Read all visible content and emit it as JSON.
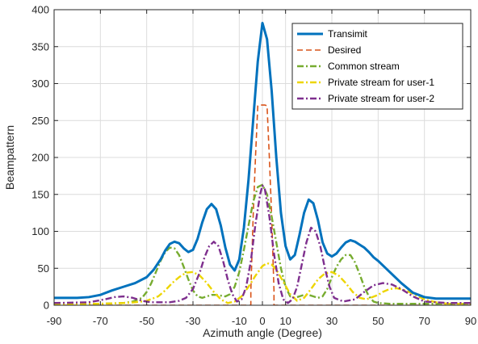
{
  "chart_data": {
    "type": "line",
    "xlabel": "Azimuth angle (Degree)",
    "ylabel": "Beampattern",
    "xlim": [
      -90,
      90
    ],
    "ylim": [
      0,
      400
    ],
    "xticks": [
      -90,
      -70,
      -50,
      -30,
      -10,
      0,
      10,
      30,
      50,
      70,
      90
    ],
    "yticks": [
      0,
      50,
      100,
      150,
      200,
      250,
      300,
      350,
      400
    ],
    "grid": true,
    "legend_position": "top-right",
    "series": [
      {
        "name": "Transimit",
        "color": "#0072BD",
        "style": "solid",
        "x": [
          -90,
          -80,
          -75,
          -70,
          -65,
          -60,
          -55,
          -50,
          -47,
          -44,
          -42,
          -40,
          -38,
          -36,
          -34,
          -32,
          -30,
          -28,
          -26,
          -24,
          -22,
          -20,
          -18,
          -16,
          -14,
          -12,
          -10,
          -8,
          -6,
          -4,
          -2,
          0,
          2,
          4,
          6,
          8,
          10,
          12,
          14,
          16,
          18,
          20,
          22,
          24,
          26,
          28,
          30,
          32,
          34,
          36,
          38,
          40,
          42,
          44,
          46,
          48,
          50,
          55,
          60,
          65,
          70,
          75,
          80,
          90
        ],
        "y": [
          10,
          10,
          11,
          14,
          20,
          25,
          30,
          38,
          48,
          62,
          74,
          83,
          86,
          84,
          77,
          72,
          75,
          90,
          112,
          130,
          137,
          130,
          108,
          78,
          55,
          47,
          62,
          105,
          170,
          250,
          330,
          382,
          360,
          290,
          200,
          125,
          80,
          62,
          68,
          95,
          125,
          143,
          138,
          115,
          85,
          70,
          66,
          70,
          78,
          85,
          88,
          86,
          82,
          78,
          72,
          65,
          60,
          45,
          30,
          17,
          11,
          9,
          9,
          9
        ]
      },
      {
        "name": "Desired",
        "color": "#D95319",
        "style": "dashed",
        "x": [
          -90,
          -5,
          -5,
          -4,
          -3,
          -2,
          -1,
          0,
          1,
          2,
          3,
          4,
          5,
          5,
          90
        ],
        "y": [
          0,
          0,
          20,
          120,
          200,
          270,
          271,
          271,
          271,
          270,
          200,
          120,
          20,
          0,
          0
        ]
      },
      {
        "name": "Common stream",
        "color": "#77AC30",
        "style": "dashdot",
        "x": [
          -90,
          -80,
          -70,
          -60,
          -56,
          -52,
          -50,
          -48,
          -46,
          -44,
          -42,
          -40,
          -38,
          -36,
          -34,
          -32,
          -30,
          -28,
          -26,
          -24,
          -22,
          -20,
          -18,
          -16,
          -14,
          -12,
          -10,
          -8,
          -6,
          -4,
          -2,
          0,
          2,
          4,
          6,
          8,
          10,
          12,
          14,
          16,
          18,
          20,
          22,
          24,
          26,
          28,
          30,
          32,
          34,
          36,
          38,
          40,
          42,
          44,
          46,
          48,
          50,
          55,
          60,
          65,
          70,
          80,
          90
        ],
        "y": [
          2,
          2,
          2,
          3,
          5,
          10,
          18,
          30,
          45,
          60,
          72,
          78,
          77,
          68,
          52,
          35,
          20,
          12,
          10,
          12,
          14,
          14,
          13,
          12,
          15,
          25,
          45,
          75,
          108,
          140,
          160,
          163,
          150,
          120,
          85,
          50,
          25,
          12,
          10,
          12,
          14,
          14,
          12,
          10,
          12,
          22,
          38,
          52,
          62,
          68,
          68,
          58,
          42,
          25,
          12,
          5,
          3,
          2,
          2,
          2,
          2,
          2,
          2
        ]
      },
      {
        "name": "Private stream for user-1",
        "color": "#EDD500",
        "style": "dashdot",
        "x": [
          -90,
          -70,
          -60,
          -55,
          -50,
          -45,
          -42,
          -39,
          -36,
          -33,
          -30,
          -27,
          -24,
          -21,
          -18,
          -15,
          -12,
          -9,
          -6,
          -3,
          0,
          2,
          4,
          6,
          9,
          12,
          15,
          18,
          21,
          24,
          27,
          30,
          33,
          36,
          39,
          42,
          45,
          50,
          52,
          55,
          58,
          62,
          66,
          70,
          75,
          80,
          90
        ],
        "y": [
          2,
          2,
          3,
          4,
          6,
          12,
          20,
          30,
          38,
          44,
          45,
          40,
          30,
          18,
          8,
          3,
          5,
          12,
          25,
          40,
          53,
          57,
          55,
          48,
          32,
          15,
          6,
          10,
          22,
          35,
          43,
          45,
          40,
          30,
          18,
          10,
          8,
          14,
          18,
          22,
          23,
          20,
          14,
          8,
          4,
          2,
          2
        ]
      },
      {
        "name": "Private stream for user-2",
        "color": "#7E2F8E",
        "style": "dashdot",
        "x": [
          -90,
          -75,
          -68,
          -64,
          -60,
          -56,
          -52,
          -48,
          -44,
          -40,
          -36,
          -33,
          -30,
          -27,
          -25,
          -23,
          -21,
          -19,
          -17,
          -15,
          -13,
          -11,
          -9,
          -7,
          -5,
          -3,
          -1,
          0,
          1,
          3,
          5,
          7,
          9,
          11,
          13,
          15,
          17,
          19,
          21,
          23,
          25,
          27,
          29,
          31,
          35,
          40,
          44,
          48,
          52,
          56,
          60,
          65,
          70,
          80,
          90
        ],
        "y": [
          3,
          4,
          8,
          11,
          12,
          10,
          6,
          4,
          4,
          4,
          6,
          10,
          22,
          45,
          65,
          80,
          86,
          80,
          60,
          35,
          15,
          5,
          8,
          25,
          60,
          110,
          150,
          162,
          158,
          120,
          70,
          30,
          8,
          3,
          8,
          25,
          55,
          85,
          105,
          100,
          80,
          50,
          25,
          10,
          5,
          8,
          18,
          27,
          30,
          28,
          22,
          12,
          5,
          3,
          3
        ]
      }
    ]
  }
}
